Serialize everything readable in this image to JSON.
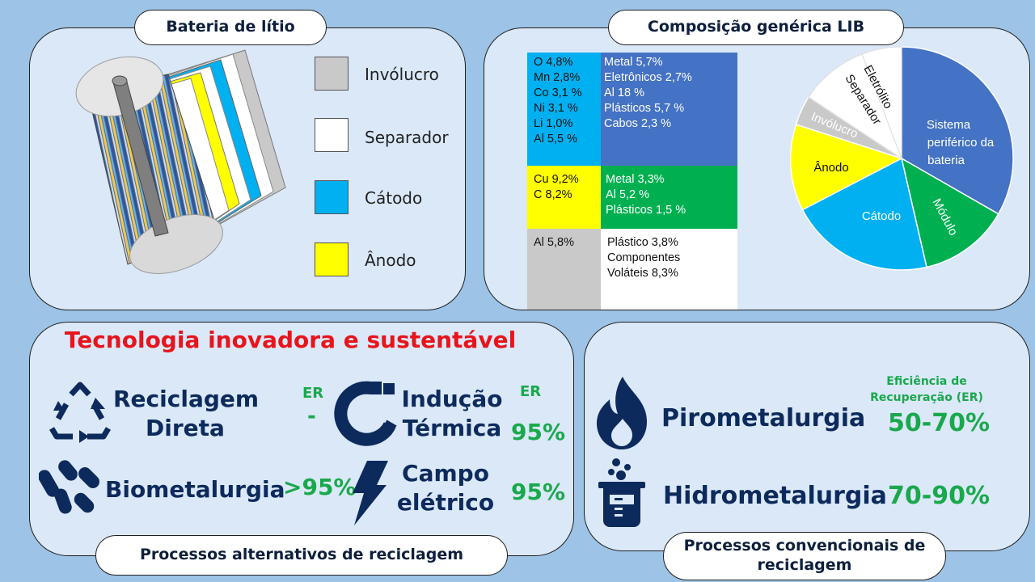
{
  "battery": {
    "title": "Bateria de lítio",
    "legend": [
      {
        "label": "Invólucro",
        "color": "#c9c9c9"
      },
      {
        "label": "Separador",
        "color": "#ffffff"
      },
      {
        "label": "Cátodo",
        "color": "#00b0f0"
      },
      {
        "label": "Ânodo",
        "color": "#ffff00"
      }
    ]
  },
  "composition": {
    "title": "Composição genérica LIB",
    "cathode_elements": [
      "O 4,8%",
      "Mn 2,8%",
      "Co 3,1 %",
      "Ni 3,1 %",
      "Li 1,0%",
      "Al 5,5 %"
    ],
    "peripheral": [
      "Metal 5,7%",
      "Eletrônicos 2,7%",
      "Al 18 %",
      "Plásticos 5,7 %",
      "Cabos 2,3 %"
    ],
    "anode_elements": [
      "Cu 9,2%",
      "C 8,2%"
    ],
    "module": [
      "Metal 3,3%",
      "Al 5,2 %",
      "Plásticos 1,5 %"
    ],
    "casing": [
      "Al 5,8%"
    ],
    "other": [
      "Plástico 3,8%",
      "Componentes",
      "Voláteis 8,3%"
    ],
    "colors": {
      "cathode": "#00b0f0",
      "peripheral": "#4472c4",
      "anode": "#ffff00",
      "module": "#00b050",
      "casing": "#c9c9c9",
      "other": "#ffffff"
    }
  },
  "pie": {
    "labels": {
      "peripheral": "Sistema periférico da bateria",
      "module": "Módulo",
      "cathode": "Cátodo",
      "anode": "Ânodo",
      "casing": "Invólucro",
      "separator": "Separador",
      "electrolyte": "Eletrólito"
    }
  },
  "alternative": {
    "heading": "Tecnologia inovadora e sustentável",
    "direct_recycling": "Reciclagem Direta",
    "direct_er_label": "ER",
    "direct_er_value": "-",
    "thermal_induction": "Indução Térmica",
    "thermal_er_label": "ER",
    "thermal_er_value": "95%",
    "biometallurgy": "Biometalurgia",
    "bio_er_value": ">95%",
    "electric_field": "Campo elétrico",
    "electric_er_value": "95%",
    "footer": "Processos alternativos de reciclagem"
  },
  "conventional": {
    "er_heading": "Eficiência de Recuperação (ER)",
    "pyro": "Pirometalurgia",
    "pyro_er": "50-70%",
    "hydro": "Hidrometalurgia",
    "hydro_er": "70-90%",
    "footer": "Processos convencionais de reciclagem"
  }
}
